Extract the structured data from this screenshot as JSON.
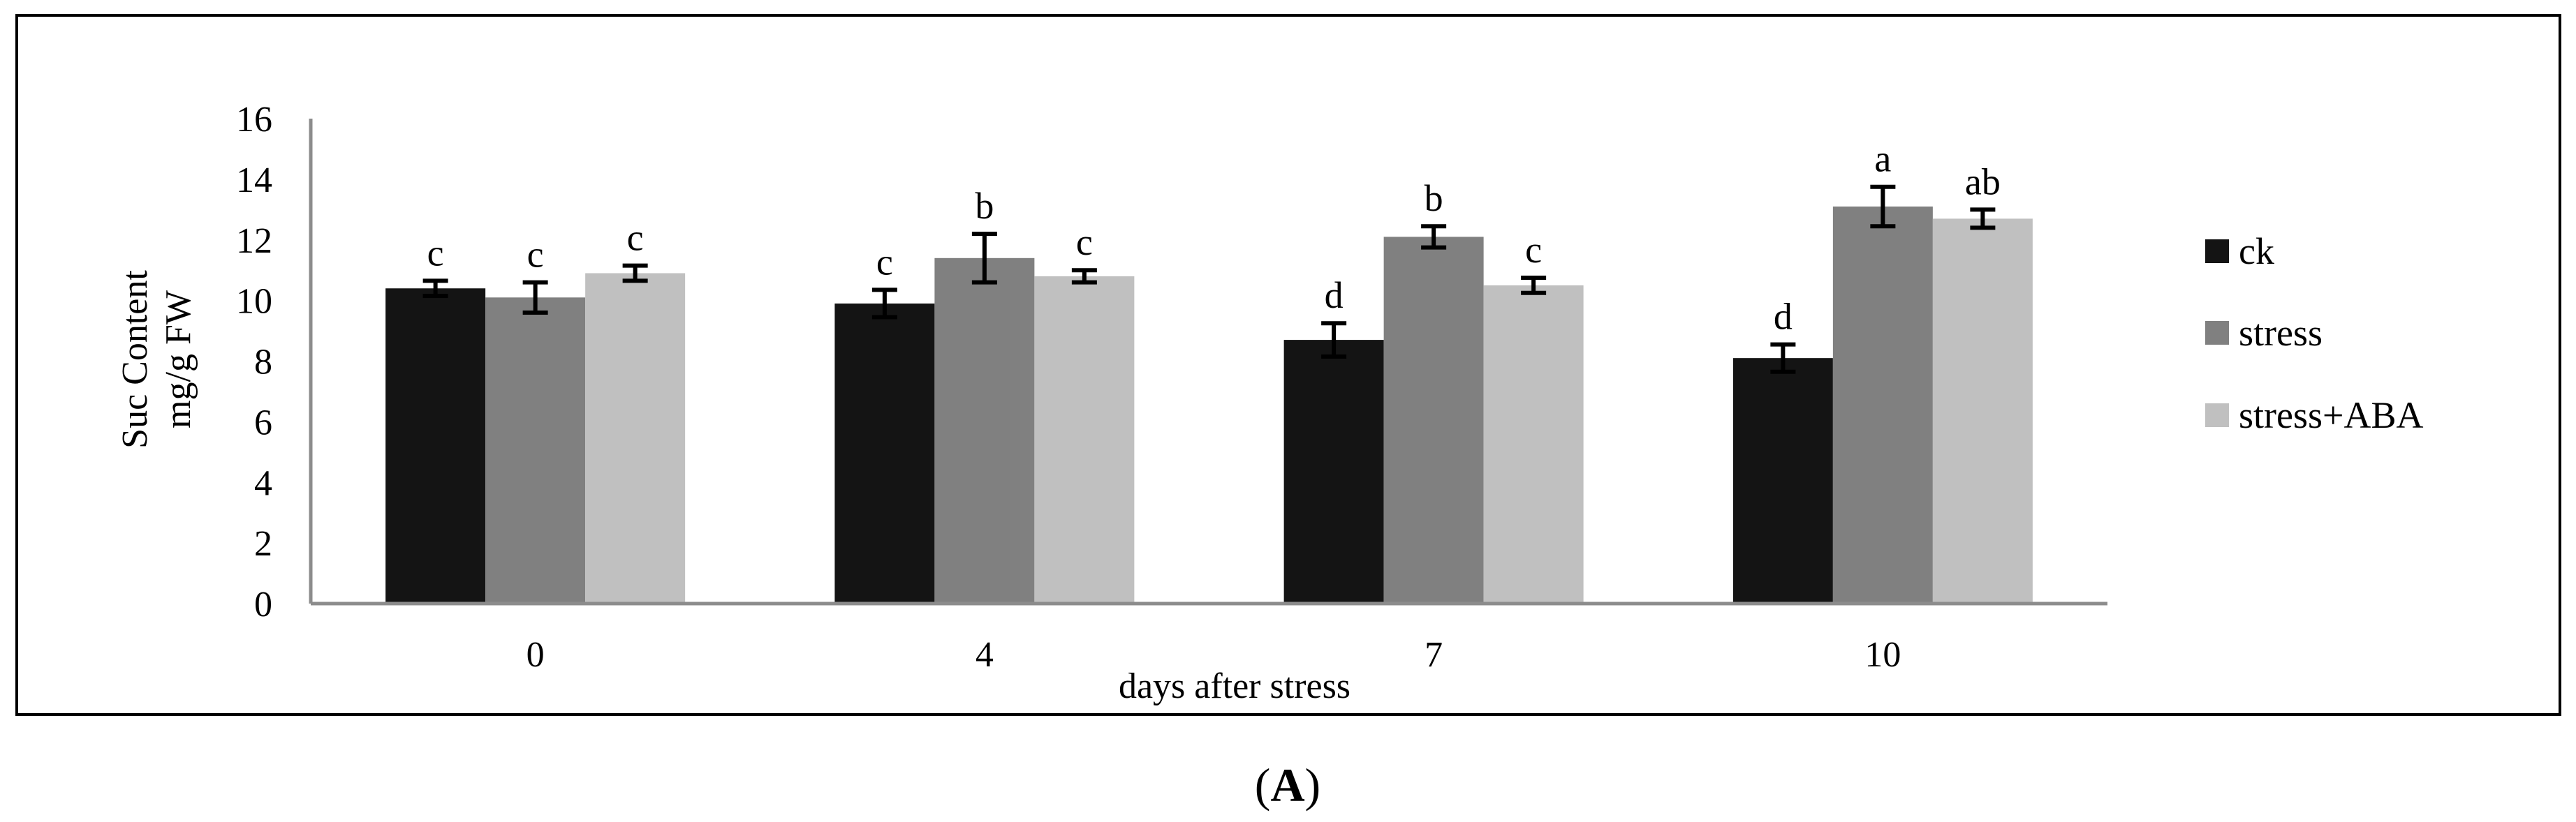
{
  "chart_data": {
    "type": "bar",
    "categories": [
      "0",
      "4",
      "7",
      "10"
    ],
    "series": [
      {
        "name": "ck",
        "color": "#141414",
        "values": [
          10.4,
          9.9,
          8.7,
          8.1
        ],
        "errors": [
          0.25,
          0.45,
          0.55,
          0.45
        ],
        "letters": [
          "c",
          "c",
          "d",
          "d"
        ]
      },
      {
        "name": "stress",
        "color": "#808080",
        "values": [
          10.1,
          11.4,
          12.1,
          13.1
        ],
        "errors": [
          0.5,
          0.8,
          0.35,
          0.65
        ],
        "letters": [
          "c",
          "b",
          "b",
          "a"
        ]
      },
      {
        "name": "stress+ABA",
        "color": "#c0c0c0",
        "values": [
          10.9,
          10.8,
          10.5,
          12.7
        ],
        "errors": [
          0.25,
          0.2,
          0.25,
          0.3
        ],
        "letters": [
          "c",
          "c",
          "c",
          "ab"
        ]
      }
    ],
    "ylabel_line1": "Suc Content",
    "ylabel_line2": "mg/g FW",
    "xlabel": "days after stress",
    "ylim": [
      0,
      16
    ],
    "yticks": [
      0,
      2,
      4,
      6,
      8,
      10,
      12,
      14,
      16
    ],
    "legend_position": "right",
    "panel_label": "A"
  }
}
